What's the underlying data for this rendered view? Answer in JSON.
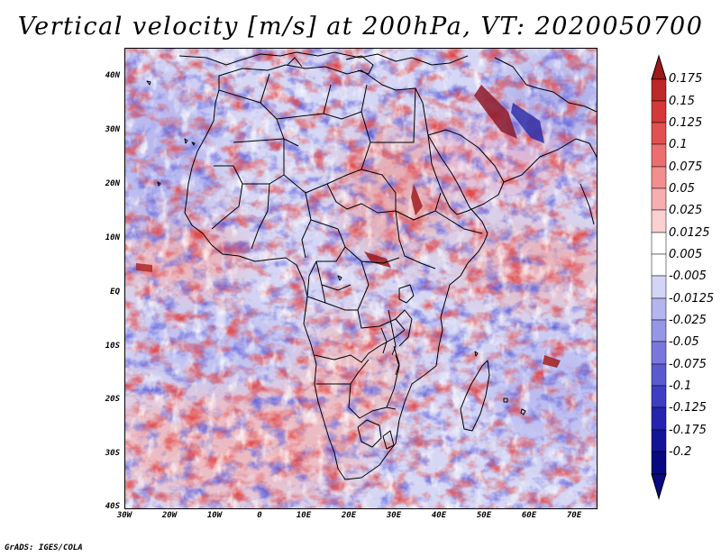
{
  "title": "Vertical velocity [m/s] at 200hPa, VT: 2020050700",
  "footer": "GrADS: IGES/COLA",
  "map": {
    "lon_range": [
      -30,
      75
    ],
    "lat_range": [
      -40,
      45
    ],
    "lat_ticks": [
      {
        "value": 40,
        "label": "40N"
      },
      {
        "value": 30,
        "label": "30N"
      },
      {
        "value": 20,
        "label": "20N"
      },
      {
        "value": 10,
        "label": "10N"
      },
      {
        "value": 0,
        "label": "EQ"
      },
      {
        "value": -10,
        "label": "10S"
      },
      {
        "value": -20,
        "label": "20S"
      },
      {
        "value": -30,
        "label": "30S"
      },
      {
        "value": -40,
        "label": "40S"
      }
    ],
    "lon_ticks": [
      {
        "value": -30,
        "label": "30W"
      },
      {
        "value": -20,
        "label": "20W"
      },
      {
        "value": -10,
        "label": "10W"
      },
      {
        "value": 0,
        "label": "0"
      },
      {
        "value": 10,
        "label": "10E"
      },
      {
        "value": 20,
        "label": "20E"
      },
      {
        "value": 30,
        "label": "30E"
      },
      {
        "value": 40,
        "label": "40E"
      },
      {
        "value": 50,
        "label": "50E"
      },
      {
        "value": 60,
        "label": "60E"
      },
      {
        "value": 70,
        "label": "70E"
      }
    ]
  },
  "colorbar": {
    "levels": [
      "0.175",
      "0.15",
      "0.125",
      "0.1",
      "0.075",
      "0.05",
      "0.025",
      "0.0125",
      "0.005",
      "-0.005",
      "-0.0125",
      "-0.025",
      "-0.05",
      "-0.075",
      "-0.1",
      "-0.125",
      "-0.175",
      "-0.2"
    ],
    "colors": [
      "#a01818",
      "#be2828",
      "#d43838",
      "#e25050",
      "#ec6e6e",
      "#f28e8e",
      "#f6aeae",
      "#fad0d0",
      "#ffffff",
      "#ffffff",
      "#d4d4f6",
      "#b4b4ee",
      "#9696e6",
      "#7878dc",
      "#5a5ad0",
      "#3e3ec4",
      "#2424b0",
      "#141498",
      "#080880"
    ]
  }
}
